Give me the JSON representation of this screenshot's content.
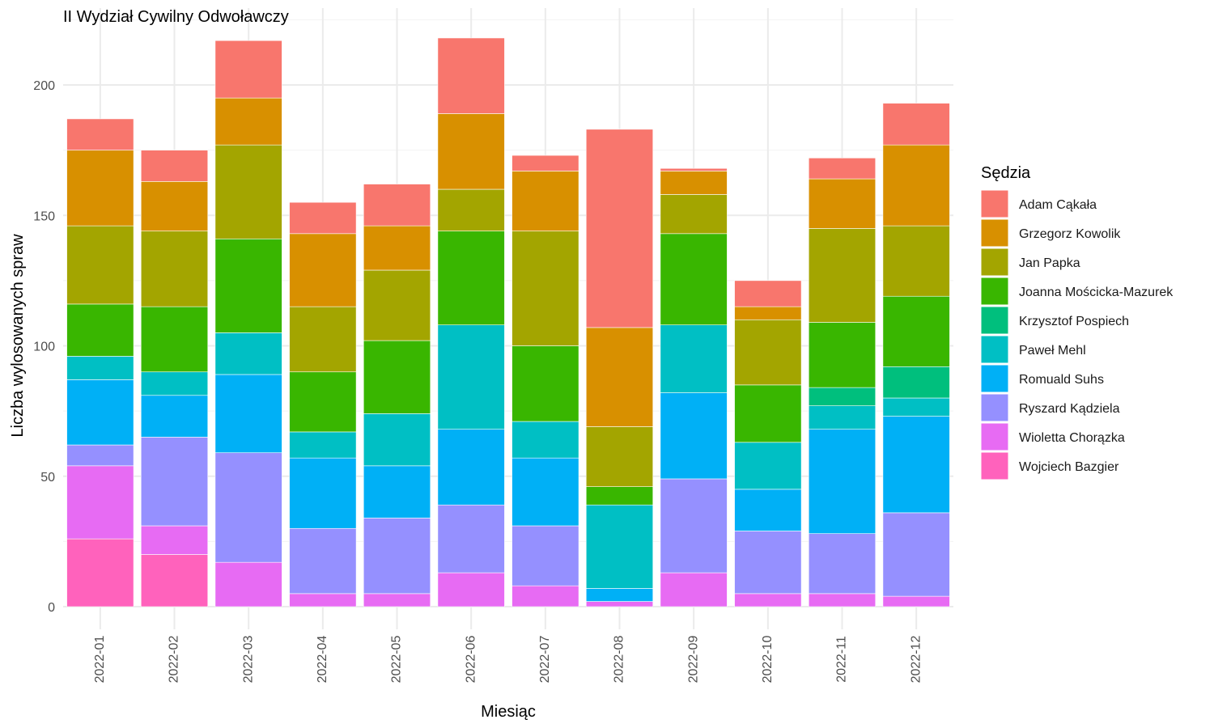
{
  "chart_data": {
    "type": "bar",
    "stacked": true,
    "title": "II Wydział Cywilny Odwoławczy",
    "xlabel": "Miesiąc",
    "ylabel": "Liczba wylosowanych spraw",
    "ylim": [
      0,
      225
    ],
    "yticks": [
      0,
      50,
      100,
      150,
      200
    ],
    "grid": true,
    "legend_title": "Sędzia",
    "legend_position": "right",
    "categories": [
      "2022-01",
      "2022-02",
      "2022-03",
      "2022-04",
      "2022-05",
      "2022-06",
      "2022-07",
      "2022-08",
      "2022-09",
      "2022-10",
      "2022-11",
      "2022-12"
    ],
    "series": [
      {
        "name": "Adam Cąkała",
        "color": "#F8766D",
        "values": [
          12,
          12,
          22,
          12,
          16,
          29,
          6,
          76,
          1,
          10,
          8,
          16
        ]
      },
      {
        "name": "Grzegorz Kowolik",
        "color": "#D89000",
        "values": [
          29,
          19,
          18,
          28,
          17,
          29,
          23,
          38,
          9,
          5,
          19,
          31
        ]
      },
      {
        "name": "Jan Papka",
        "color": "#A3A500",
        "values": [
          30,
          29,
          36,
          25,
          27,
          16,
          44,
          23,
          15,
          25,
          36,
          27
        ]
      },
      {
        "name": "Joanna Mościcka-Mazurek",
        "color": "#39B600",
        "values": [
          20,
          25,
          36,
          23,
          28,
          36,
          29,
          7,
          35,
          22,
          25,
          27
        ]
      },
      {
        "name": "Krzysztof Pospiech",
        "color": "#00BF7D",
        "values": [
          0,
          0,
          0,
          0,
          0,
          0,
          0,
          0,
          0,
          0,
          7,
          12
        ]
      },
      {
        "name": "Paweł Mehl",
        "color": "#00BFC4",
        "values": [
          9,
          9,
          16,
          10,
          20,
          40,
          14,
          32,
          26,
          18,
          9,
          7
        ]
      },
      {
        "name": "Romuald Suhs",
        "color": "#00B0F6",
        "values": [
          25,
          16,
          30,
          27,
          20,
          29,
          26,
          5,
          33,
          16,
          40,
          37
        ]
      },
      {
        "name": "Ryszard Kądziela",
        "color": "#9590FF",
        "values": [
          8,
          34,
          42,
          25,
          29,
          26,
          23,
          0,
          36,
          24,
          23,
          32
        ]
      },
      {
        "name": "Wioletta Chorązka",
        "color": "#E76BF3",
        "values": [
          28,
          11,
          17,
          5,
          5,
          13,
          8,
          2,
          13,
          5,
          5,
          4
        ]
      },
      {
        "name": "Wojciech Bazgier",
        "color": "#FF62BC",
        "values": [
          26,
          20,
          0,
          0,
          0,
          0,
          0,
          0,
          0,
          0,
          0,
          0
        ]
      }
    ]
  }
}
